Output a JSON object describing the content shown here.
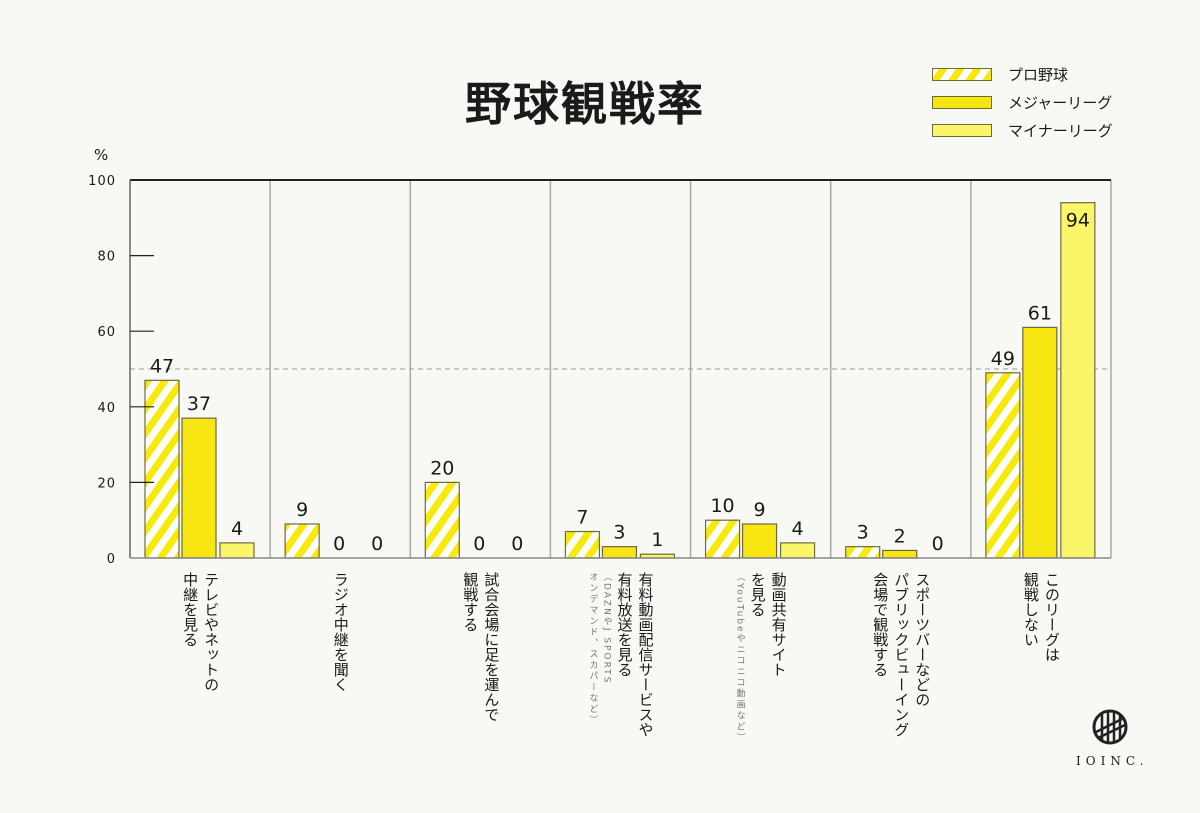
{
  "chart_data": {
    "type": "bar",
    "title": "野球観戦率",
    "unit_label": "%",
    "xlabel": "",
    "ylabel": "%",
    "ylim": [
      0,
      100
    ],
    "yticks": [
      0,
      20,
      40,
      60,
      80,
      100
    ],
    "reference_line": 50,
    "legend_position": "top-right",
    "categories": [
      {
        "lines": [
          "テレビやネットの",
          "中継を見る"
        ],
        "note": ""
      },
      {
        "lines": [
          "ラジオ中継を聞く"
        ],
        "note": ""
      },
      {
        "lines": [
          "試合会場に足を運んで",
          "観戦する"
        ],
        "note": ""
      },
      {
        "lines": [
          "有料動画配信サービスや",
          "有料放送を見る"
        ],
        "note": [
          "（DAZNやJ SPORTS",
          "オンデマンド、スカパーなど）"
        ]
      },
      {
        "lines": [
          "動画共有サイト",
          "を見る"
        ],
        "note": [
          "（YouTubeやニコニコ動画など）"
        ]
      },
      {
        "lines": [
          "スポーツバーなどの",
          "パブリックビューイング",
          "会場で観戦する"
        ],
        "note": ""
      },
      {
        "lines": [
          "このリーグは",
          "観戦しない"
        ],
        "note": ""
      }
    ],
    "series": [
      {
        "name": "プロ野球",
        "style": "striped",
        "color": "#f7e90a",
        "values": [
          47,
          9,
          20,
          7,
          10,
          3,
          49
        ]
      },
      {
        "name": "メジャーリーグ",
        "style": "solid",
        "color": "#f7e611",
        "values": [
          37,
          0,
          0,
          3,
          9,
          2,
          61
        ]
      },
      {
        "name": "マイナーリーグ",
        "style": "solid",
        "color": "#fbf56a",
        "values": [
          4,
          0,
          0,
          1,
          4,
          0,
          94
        ]
      }
    ]
  },
  "branding": {
    "logo_text": "IOINC."
  }
}
